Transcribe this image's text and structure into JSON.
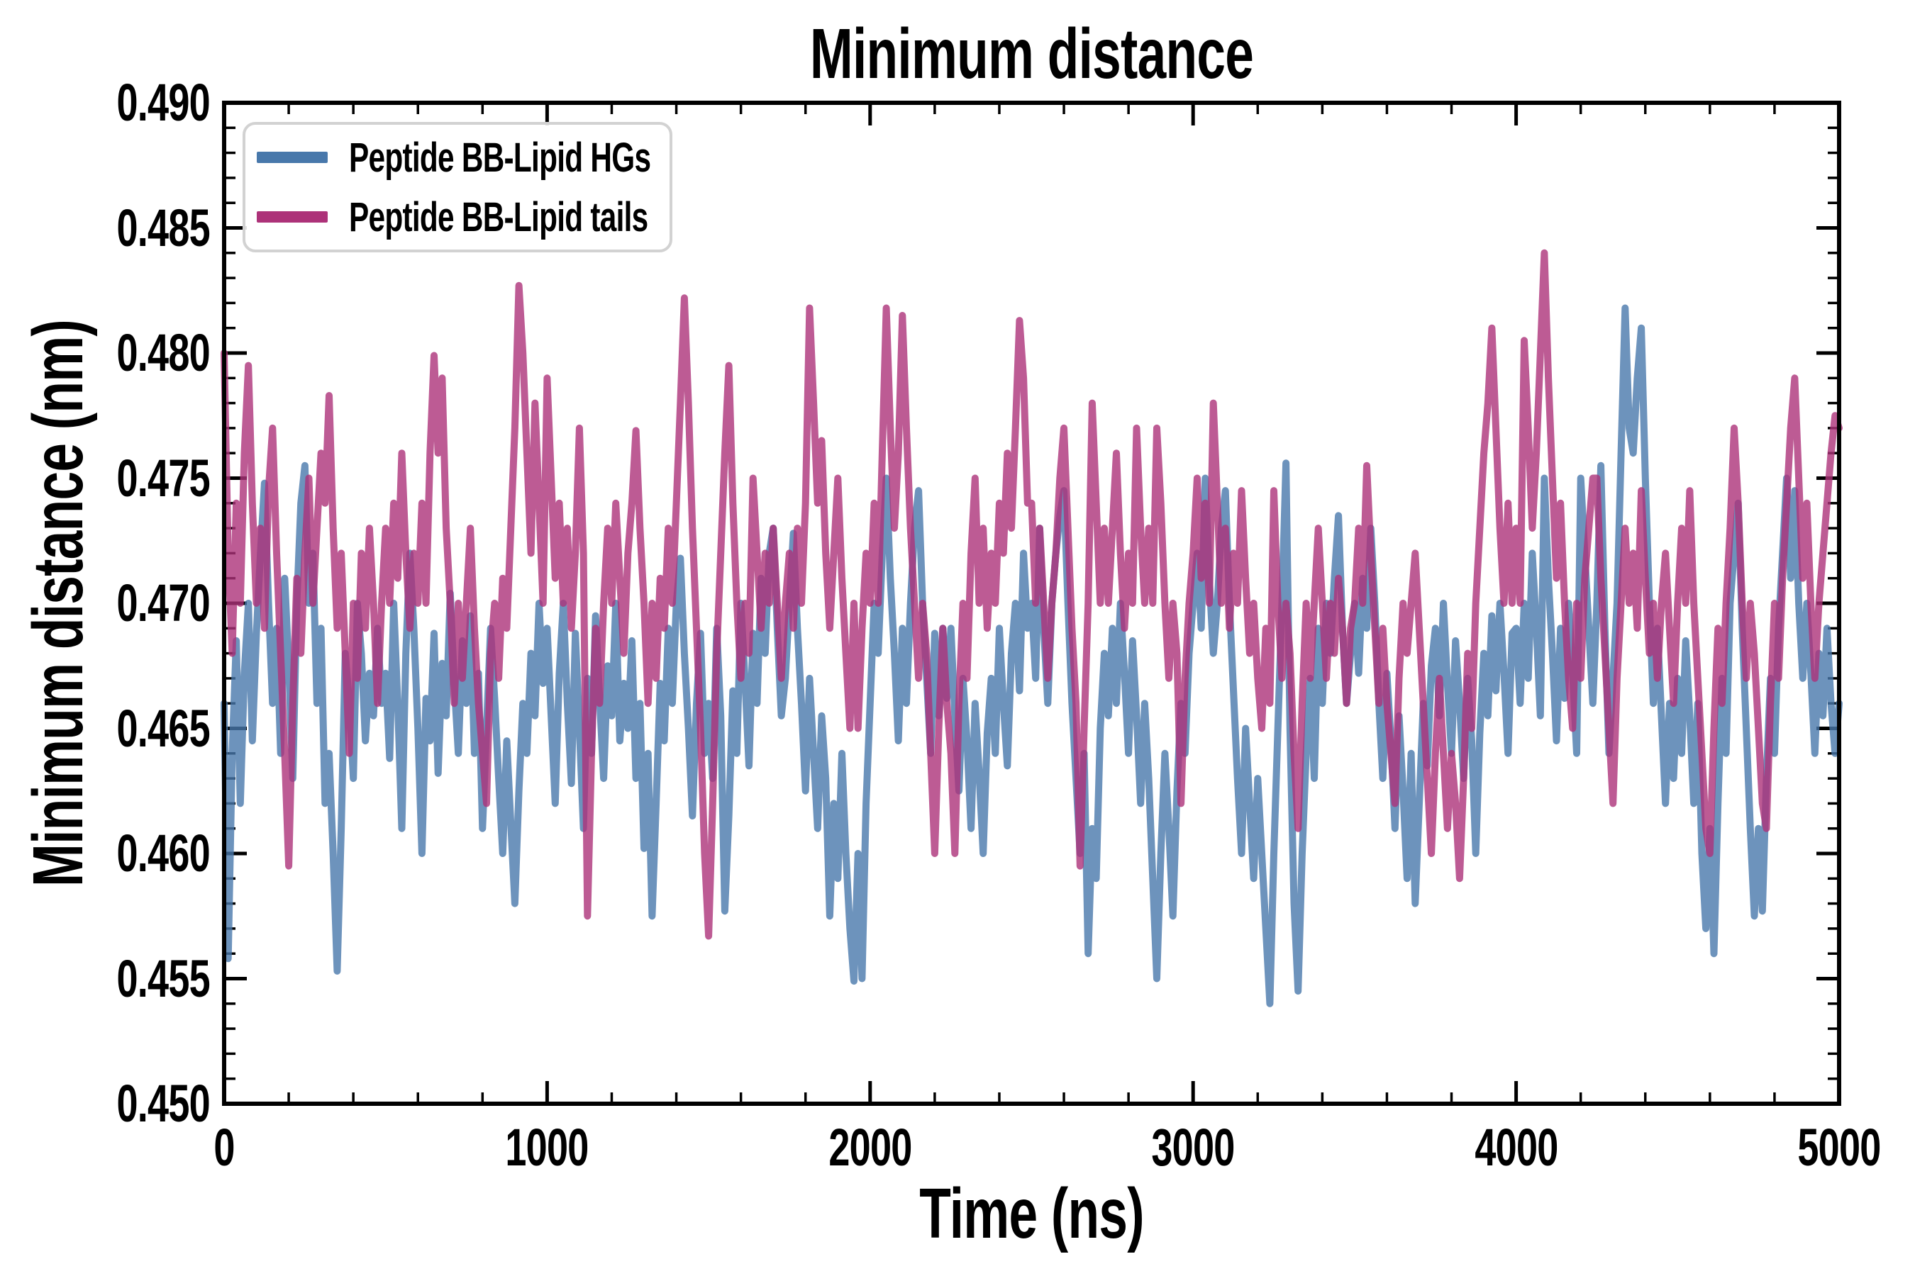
{
  "title": "Minimum distance",
  "axes": {
    "xlabel": "Time (ns)",
    "ylabel": "Minimum distance (nm)",
    "x_tick_labels": [
      "0",
      "1000",
      "2000",
      "3000",
      "4000",
      "5000"
    ],
    "y_tick_labels": [
      "0.450",
      "0.455",
      "0.460",
      "0.465",
      "0.470",
      "0.475",
      "0.480",
      "0.485",
      "0.490"
    ]
  },
  "legend": {
    "items": [
      {
        "label": "Peptide BB-Lipid HGs",
        "color": "#4878ab"
      },
      {
        "label": "Peptide BB-Lipid tails",
        "color": "#ad3279"
      }
    ]
  },
  "colors": {
    "blue_series": "#4878ab",
    "pink_series": "#ad3279",
    "axis": "#000000",
    "legend_border": "#d2d2d2",
    "background": "#ffffff"
  },
  "chart_data": {
    "type": "line",
    "title": "Minimum distance",
    "xlabel": "Time (ns)",
    "ylabel": "Minimum distance (nm)",
    "xlim": [
      0,
      5000
    ],
    "ylim": [
      0.45,
      0.49
    ],
    "x_major_tick_step": 1000,
    "x_minor_tick_step": 200,
    "y_major_tick_step": 0.005,
    "y_minor_tick_step": 0.001,
    "grid": false,
    "legend_position": "upper left",
    "n_points": 401,
    "x_spacing": "401 points evenly spaced from 0 to 5000 ns (12.5 ns step), values estimated from plot",
    "value_scale": 0.0001,
    "value_unit": "nm",
    "series": [
      {
        "name": "Peptide BB-Lipid HGs",
        "color": "#4878ab",
        "opacity": 0.8,
        "values": [
          4660,
          4558,
          4640,
          4685,
          4620,
          4672,
          4700,
          4645,
          4688,
          4720,
          4748,
          4700,
          4660,
          4690,
          4640,
          4710,
          4675,
          4630,
          4700,
          4740,
          4755,
          4700,
          4720,
          4660,
          4690,
          4620,
          4640,
          4600,
          4553,
          4610,
          4680,
          4660,
          4630,
          4700,
          4680,
          4645,
          4672,
          4655,
          4690,
          4660,
          4672,
          4638,
          4700,
          4660,
          4610,
          4680,
          4720,
          4690,
          4650,
          4600,
          4662,
          4645,
          4688,
          4632,
          4676,
          4655,
          4704,
          4668,
          4640,
          4685,
          4660,
          4695,
          4640,
          4672,
          4610,
          4650,
          4690,
          4662,
          4630,
          4600,
          4645,
          4612,
          4580,
          4625,
          4660,
          4640,
          4680,
          4655,
          4700,
          4668,
          4690,
          4655,
          4620,
          4672,
          4700,
          4660,
          4628,
          4688,
          4650,
          4610,
          4670,
          4640,
          4695,
          4662,
          4630,
          4675,
          4655,
          4700,
          4645,
          4668,
          4650,
          4685,
          4630,
          4660,
          4602,
          4640,
          4575,
          4620,
          4668,
          4645,
          4690,
          4660,
          4700,
          4718,
          4680,
          4650,
          4615,
          4660,
          4688,
          4640,
          4660,
          4630,
          4690,
          4655,
          4577,
          4615,
          4665,
          4640,
          4700,
          4670,
          4635,
          4688,
          4660,
          4710,
          4680,
          4720,
          4730,
          4690,
          4655,
          4670,
          4700,
          4728,
          4690,
          4660,
          4625,
          4670,
          4640,
          4610,
          4655,
          4630,
          4575,
          4620,
          4590,
          4640,
          4600,
          4570,
          4549,
          4600,
          4550,
          4620,
          4660,
          4700,
          4680,
          4720,
          4750,
          4710,
          4680,
          4645,
          4690,
          4660,
          4700,
          4730,
          4745,
          4700,
          4670,
          4640,
          4688,
          4655,
          4690,
          4662,
          4690,
          4655,
          4625,
          4670,
          4645,
          4610,
          4660,
          4632,
          4600,
          4648,
          4670,
          4640,
          4690,
          4660,
          4635,
          4680,
          4700,
          4665,
          4720,
          4690,
          4700,
          4670,
          4730,
          4690,
          4660,
          4700,
          4720,
          4735,
          4745,
          4700,
          4660,
          4630,
          4600,
          4640,
          4560,
          4610,
          4590,
          4650,
          4680,
          4655,
          4690,
          4660,
          4700,
          4672,
          4640,
          4685,
          4655,
          4620,
          4660,
          4630,
          4590,
          4550,
          4600,
          4640,
          4610,
          4575,
          4625,
          4660,
          4640,
          4680,
          4700,
          4720,
          4690,
          4750,
          4710,
          4680,
          4700,
          4730,
          4745,
          4700,
          4665,
          4630,
          4600,
          4650,
          4620,
          4590,
          4630,
          4600,
          4570,
          4540,
          4600,
          4650,
          4700,
          4756,
          4650,
          4580,
          4545,
          4600,
          4640,
          4670,
          4630,
          4690,
          4660,
          4700,
          4680,
          4710,
          4735,
          4690,
          4660,
          4680,
          4700,
          4672,
          4710,
          4690,
          4730,
          4700,
          4660,
          4630,
          4672,
          4645,
          4610,
          4655,
          4625,
          4590,
          4640,
          4580,
          4620,
          4660,
          4635,
          4675,
          4690,
          4655,
          4700,
          4668,
          4640,
          4685,
          4660,
          4630,
          4670,
          4645,
          4600,
          4648,
          4680,
          4655,
          4695,
          4665,
          4700,
          4672,
          4640,
          4688,
          4690,
          4660,
          4700,
          4670,
          4720,
          4690,
          4655,
          4750,
          4710,
          4680,
          4645,
          4690,
          4662,
          4700,
          4672,
          4640,
          4750,
          4720,
          4690,
          4660,
          4700,
          4755,
          4690,
          4640,
          4670,
          4700,
          4760,
          4818,
          4770,
          4760,
          4790,
          4810,
          4750,
          4700,
          4660,
          4690,
          4655,
          4620,
          4660,
          4630,
          4670,
          4640,
          4685,
          4655,
          4620,
          4660,
          4600,
          4570,
          4610,
          4560,
          4620,
          4670,
          4640,
          4700,
          4720,
          4740,
          4690,
          4650,
          4610,
          4575,
          4610,
          4577,
          4630,
          4670,
          4640,
          4690,
          4720,
          4750,
          4710,
          4745,
          4700,
          4670,
          4700,
          4672,
          4640,
          4680,
          4655,
          4690,
          4660,
          4640,
          4660
        ]
      },
      {
        "name": "Peptide BB-Lipid tails",
        "color": "#ad3279",
        "opacity": 0.8,
        "values": [
          4800,
          4720,
          4680,
          4740,
          4700,
          4760,
          4795,
          4740,
          4700,
          4730,
          4690,
          4745,
          4770,
          4720,
          4680,
          4640,
          4595,
          4660,
          4710,
          4680,
          4720,
          4750,
          4700,
          4730,
          4760,
          4740,
          4783,
          4730,
          4690,
          4720,
          4680,
          4640,
          4700,
          4670,
          4720,
          4690,
          4730,
          4700,
          4660,
          4700,
          4730,
          4700,
          4740,
          4710,
          4760,
          4720,
          4690,
          4720,
          4700,
          4740,
          4700,
          4760,
          4799,
          4760,
          4790,
          4730,
          4700,
          4660,
          4700,
          4670,
          4700,
          4730,
          4690,
          4660,
          4640,
          4620,
          4680,
          4700,
          4670,
          4710,
          4690,
          4730,
          4770,
          4827,
          4800,
          4760,
          4720,
          4780,
          4740,
          4700,
          4790,
          4750,
          4710,
          4740,
          4700,
          4730,
          4690,
          4720,
          4770,
          4720,
          4575,
          4640,
          4690,
          4660,
          4700,
          4730,
          4700,
          4740,
          4710,
          4680,
          4720,
          4740,
          4769,
          4730,
          4700,
          4660,
          4700,
          4670,
          4710,
          4690,
          4730,
          4700,
          4740,
          4780,
          4822,
          4780,
          4730,
          4690,
          4650,
          4600,
          4567,
          4620,
          4680,
          4720,
          4760,
          4795,
          4740,
          4700,
          4670,
          4700,
          4680,
          4750,
          4720,
          4690,
          4720,
          4700,
          4730,
          4700,
          4670,
          4700,
          4720,
          4690,
          4730,
          4700,
          4740,
          4818,
          4780,
          4740,
          4765,
          4720,
          4690,
          4720,
          4750,
          4710,
          4680,
          4650,
          4700,
          4650,
          4690,
          4720,
          4700,
          4740,
          4700,
          4760,
          4818,
          4770,
          4730,
          4760,
          4815,
          4770,
          4730,
          4700,
          4670,
          4700,
          4680,
          4640,
          4600,
          4650,
          4690,
          4660,
          4640,
          4600,
          4660,
          4700,
          4670,
          4720,
          4750,
          4700,
          4730,
          4690,
          4720,
          4700,
          4740,
          4720,
          4760,
          4730,
          4770,
          4813,
          4790,
          4740,
          4740,
          4700,
          4730,
          4700,
          4670,
          4700,
          4720,
          4750,
          4770,
          4730,
          4690,
          4660,
          4595,
          4650,
          4700,
          4780,
          4740,
          4700,
          4730,
          4700,
          4730,
          4760,
          4720,
          4690,
          4720,
          4700,
          4770,
          4730,
          4700,
          4730,
          4700,
          4770,
          4740,
          4700,
          4670,
          4700,
          4680,
          4620,
          4670,
          4700,
          4720,
          4750,
          4710,
          4740,
          4700,
          4780,
          4740,
          4700,
          4730,
          4690,
          4720,
          4700,
          4745,
          4710,
          4680,
          4700,
          4670,
          4650,
          4690,
          4660,
          4745,
          4700,
          4670,
          4700,
          4680,
          4640,
          4610,
          4660,
          4700,
          4670,
          4700,
          4730,
          4700,
          4670,
          4700,
          4680,
          4710,
          4690,
          4660,
          4690,
          4700,
          4730,
          4700,
          4755,
          4720,
          4690,
          4660,
          4690,
          4660,
          4640,
          4620,
          4670,
          4700,
          4680,
          4700,
          4720,
          4690,
          4660,
          4630,
          4600,
          4640,
          4670,
          4640,
          4610,
          4640,
          4620,
          4590,
          4630,
          4680,
          4650,
          4700,
          4730,
          4760,
          4780,
          4810,
          4770,
          4730,
          4700,
          4740,
          4700,
          4730,
          4700,
          4805,
          4770,
          4730,
          4760,
          4800,
          4840,
          4790,
          4750,
          4710,
          4740,
          4700,
          4670,
          4650,
          4700,
          4670,
          4710,
          4730,
          4750,
          4750,
          4710,
          4680,
          4650,
          4620,
          4670,
          4700,
          4730,
          4700,
          4720,
          4690,
          4745,
          4710,
          4680,
          4700,
          4670,
          4700,
          4720,
          4690,
          4660,
          4700,
          4730,
          4700,
          4745,
          4700,
          4670,
          4640,
          4610,
          4600,
          4650,
          4690,
          4660,
          4700,
          4730,
          4770,
          4740,
          4700,
          4670,
          4700,
          4680,
          4650,
          4620,
          4610,
          4660,
          4700,
          4670,
          4710,
          4740,
          4770,
          4790,
          4750,
          4710,
          4740,
          4700,
          4670,
          4700,
          4720,
          4740,
          4760,
          4775,
          4770
        ]
      }
    ]
  }
}
